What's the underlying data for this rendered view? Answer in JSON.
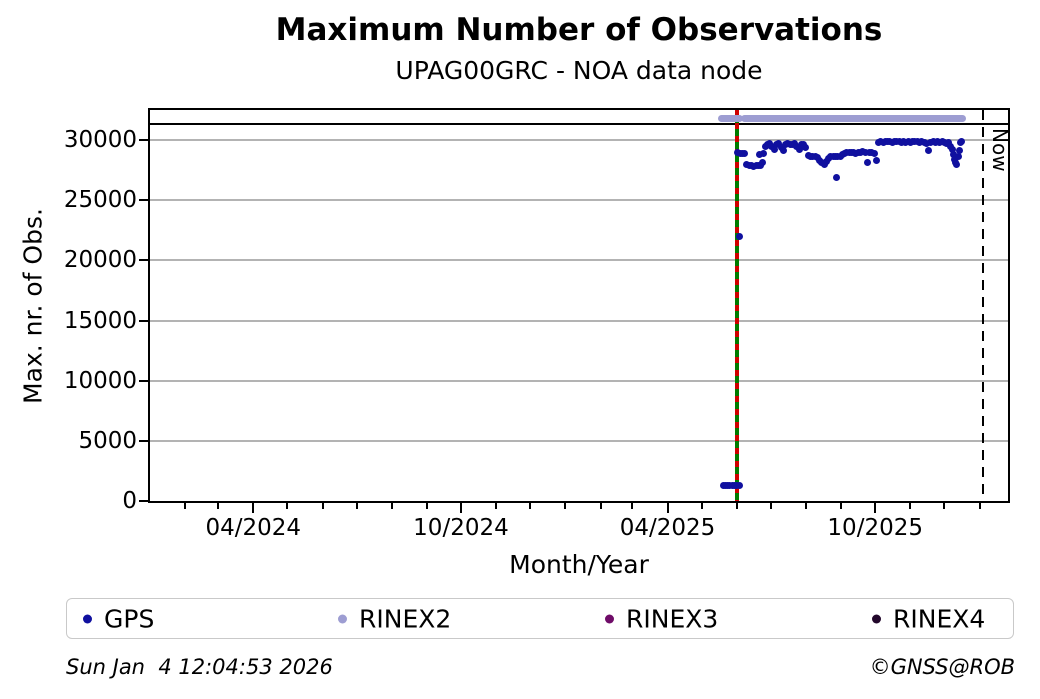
{
  "title": "Maximum Number of Observations",
  "subtitle": "UPAG00GRC - NOA data node",
  "footer": {
    "timestamp": "Sun Jan  4 12:04:53 2026",
    "copyright": "©GNSS@ROB"
  },
  "legend": {
    "items": [
      {
        "label": "GPS",
        "color": "#10109f"
      },
      {
        "label": "RINEX2",
        "color": "#9d9dd2"
      },
      {
        "label": "RINEX3",
        "color": "#6f0c68"
      },
      {
        "label": "RINEX4",
        "color": "#22072b"
      }
    ]
  },
  "chart_data": {
    "type": "scatter",
    "title": "Maximum Number of Observations",
    "subtitle": "UPAG00GRC - NOA data node",
    "xlabel": "Month/Year",
    "ylabel": "Max. nr. of Obs.",
    "x_range": [
      "2024-01-01",
      "2026-01-26"
    ],
    "ylim": [
      0,
      32500
    ],
    "yticks": [
      0,
      5000,
      10000,
      15000,
      20000,
      25000,
      30000
    ],
    "xticks_major": [
      {
        "date": "2024-04-01",
        "label": "04/2024"
      },
      {
        "date": "2024-10-01",
        "label": "10/2024"
      },
      {
        "date": "2025-04-01",
        "label": "04/2025"
      },
      {
        "date": "2025-10-01",
        "label": "10/2025"
      }
    ],
    "xticks_minor": "monthly",
    "grid": "horizontal",
    "grid_color": "#b3b3b3",
    "annotations": {
      "hline": {
        "value": 31340,
        "color": "#000000"
      },
      "event_line": {
        "date": "2025-06-01",
        "solid_color": "#007c00",
        "dash_color": "#cf0000"
      },
      "now_line": {
        "date": "2026-01-04",
        "label": "Now",
        "color": "#000000"
      }
    },
    "series": [
      {
        "name": "GPS",
        "color": "#10109f",
        "marker": "dot",
        "points": [
          [
            "2025-05-20",
            1250
          ],
          [
            "2025-05-22",
            1300
          ],
          [
            "2025-05-24",
            1300
          ],
          [
            "2025-05-26",
            1320
          ],
          [
            "2025-05-28",
            1280
          ],
          [
            "2025-05-30",
            1300
          ],
          [
            "2025-06-01",
            1320
          ],
          [
            "2025-06-03",
            1280
          ],
          [
            "2025-06-03",
            21950
          ],
          [
            "2025-06-02",
            28950
          ],
          [
            "2025-06-04",
            28900
          ],
          [
            "2025-06-06",
            28850
          ],
          [
            "2025-06-08",
            28900
          ],
          [
            "2025-06-10",
            27950
          ],
          [
            "2025-06-12",
            27900
          ],
          [
            "2025-06-14",
            27850
          ],
          [
            "2025-06-16",
            27800
          ],
          [
            "2025-06-18",
            27850
          ],
          [
            "2025-06-20",
            27900
          ],
          [
            "2025-06-21",
            28800
          ],
          [
            "2025-06-22",
            27850
          ],
          [
            "2025-06-24",
            28100
          ],
          [
            "2025-06-25",
            28900
          ],
          [
            "2025-06-26",
            29500
          ],
          [
            "2025-06-28",
            29600
          ],
          [
            "2025-06-30",
            29700
          ],
          [
            "2025-07-02",
            29500
          ],
          [
            "2025-07-04",
            29200
          ],
          [
            "2025-07-06",
            29600
          ],
          [
            "2025-07-08",
            29700
          ],
          [
            "2025-07-10",
            29400
          ],
          [
            "2025-07-12",
            29100
          ],
          [
            "2025-07-14",
            29600
          ],
          [
            "2025-07-16",
            29700
          ],
          [
            "2025-07-18",
            29650
          ],
          [
            "2025-07-20",
            29600
          ],
          [
            "2025-07-22",
            29700
          ],
          [
            "2025-07-24",
            29500
          ],
          [
            "2025-07-26",
            29200
          ],
          [
            "2025-07-28",
            29600
          ],
          [
            "2025-07-30",
            29650
          ],
          [
            "2025-08-01",
            29400
          ],
          [
            "2025-08-03",
            28700
          ],
          [
            "2025-08-05",
            28600
          ],
          [
            "2025-08-07",
            28650
          ],
          [
            "2025-08-09",
            28600
          ],
          [
            "2025-08-11",
            28550
          ],
          [
            "2025-08-13",
            28300
          ],
          [
            "2025-08-15",
            28100
          ],
          [
            "2025-08-17",
            27950
          ],
          [
            "2025-08-19",
            28200
          ],
          [
            "2025-08-21",
            28500
          ],
          [
            "2025-08-23",
            28600
          ],
          [
            "2025-08-25",
            28650
          ],
          [
            "2025-08-27",
            28600
          ],
          [
            "2025-08-28",
            26900
          ],
          [
            "2025-08-29",
            28650
          ],
          [
            "2025-08-31",
            28600
          ],
          [
            "2025-09-02",
            28800
          ],
          [
            "2025-09-04",
            28900
          ],
          [
            "2025-09-06",
            28950
          ],
          [
            "2025-09-08",
            29000
          ],
          [
            "2025-09-10",
            28950
          ],
          [
            "2025-09-12",
            29000
          ],
          [
            "2025-09-14",
            28900
          ],
          [
            "2025-09-16",
            28950
          ],
          [
            "2025-09-18",
            29000
          ],
          [
            "2025-09-20",
            29050
          ],
          [
            "2025-09-22",
            28950
          ],
          [
            "2025-09-24",
            28100
          ],
          [
            "2025-09-26",
            29000
          ],
          [
            "2025-09-28",
            28950
          ],
          [
            "2025-09-30",
            28900
          ],
          [
            "2025-10-02",
            28300
          ],
          [
            "2025-10-04",
            29800
          ],
          [
            "2025-10-06",
            29850
          ],
          [
            "2025-10-08",
            29800
          ],
          [
            "2025-10-10",
            29850
          ],
          [
            "2025-10-12",
            29900
          ],
          [
            "2025-10-14",
            29850
          ],
          [
            "2025-10-16",
            29800
          ],
          [
            "2025-10-18",
            29850
          ],
          [
            "2025-10-20",
            29900
          ],
          [
            "2025-10-22",
            29850
          ],
          [
            "2025-10-24",
            29800
          ],
          [
            "2025-10-26",
            29850
          ],
          [
            "2025-10-28",
            29800
          ],
          [
            "2025-10-30",
            29850
          ],
          [
            "2025-11-01",
            29800
          ],
          [
            "2025-11-03",
            29850
          ],
          [
            "2025-11-05",
            29900
          ],
          [
            "2025-11-07",
            29850
          ],
          [
            "2025-11-09",
            29800
          ],
          [
            "2025-11-11",
            29850
          ],
          [
            "2025-11-13",
            29800
          ],
          [
            "2025-11-15",
            29750
          ],
          [
            "2025-11-17",
            29100
          ],
          [
            "2025-11-19",
            29800
          ],
          [
            "2025-11-21",
            29850
          ],
          [
            "2025-11-23",
            29800
          ],
          [
            "2025-11-25",
            29850
          ],
          [
            "2025-11-27",
            29800
          ],
          [
            "2025-11-29",
            29850
          ],
          [
            "2025-12-01",
            29800
          ],
          [
            "2025-12-03",
            29750
          ],
          [
            "2025-12-05",
            29800
          ],
          [
            "2025-12-06",
            29500
          ],
          [
            "2025-12-08",
            29200
          ],
          [
            "2025-12-09",
            28800
          ],
          [
            "2025-12-10",
            28400
          ],
          [
            "2025-12-11",
            28100
          ],
          [
            "2025-12-12",
            28000
          ],
          [
            "2025-12-13",
            28600
          ],
          [
            "2025-12-14",
            29100
          ],
          [
            "2025-12-15",
            29800
          ],
          [
            "2025-12-16",
            29850
          ]
        ]
      },
      {
        "name": "RINEX2",
        "color": "#9d9dd2",
        "marker": "dot-band",
        "value": 31800,
        "segments": [
          [
            "2025-05-19",
            "2025-06-03"
          ],
          [
            "2025-06-08",
            "2025-12-17"
          ]
        ]
      },
      {
        "name": "RINEX3",
        "color": "#6f0c68",
        "marker": "dot",
        "points": []
      },
      {
        "name": "RINEX4",
        "color": "#22072b",
        "marker": "dot",
        "points": []
      }
    ]
  }
}
